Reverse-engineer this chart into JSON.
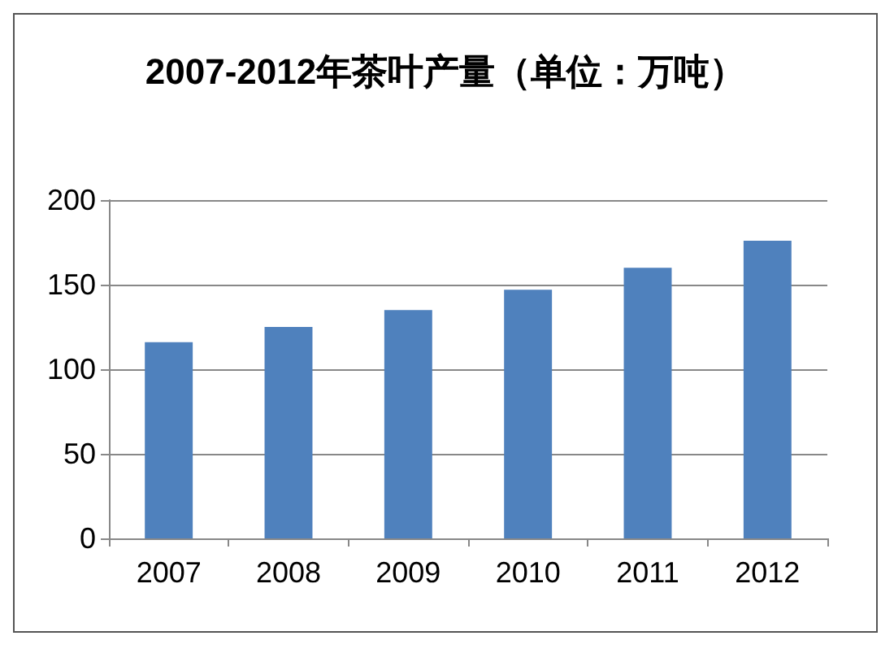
{
  "chart_data": {
    "type": "bar",
    "title": "2007-2012年茶叶产量（单位：万吨）",
    "categories": [
      "2007",
      "2008",
      "2009",
      "2010",
      "2011",
      "2012"
    ],
    "values": [
      116,
      125,
      135,
      147,
      160,
      176
    ],
    "color": "#4f81bd",
    "ylim": [
      0,
      200
    ],
    "yticks": [
      0,
      50,
      100,
      150,
      200
    ],
    "grid": "y"
  }
}
